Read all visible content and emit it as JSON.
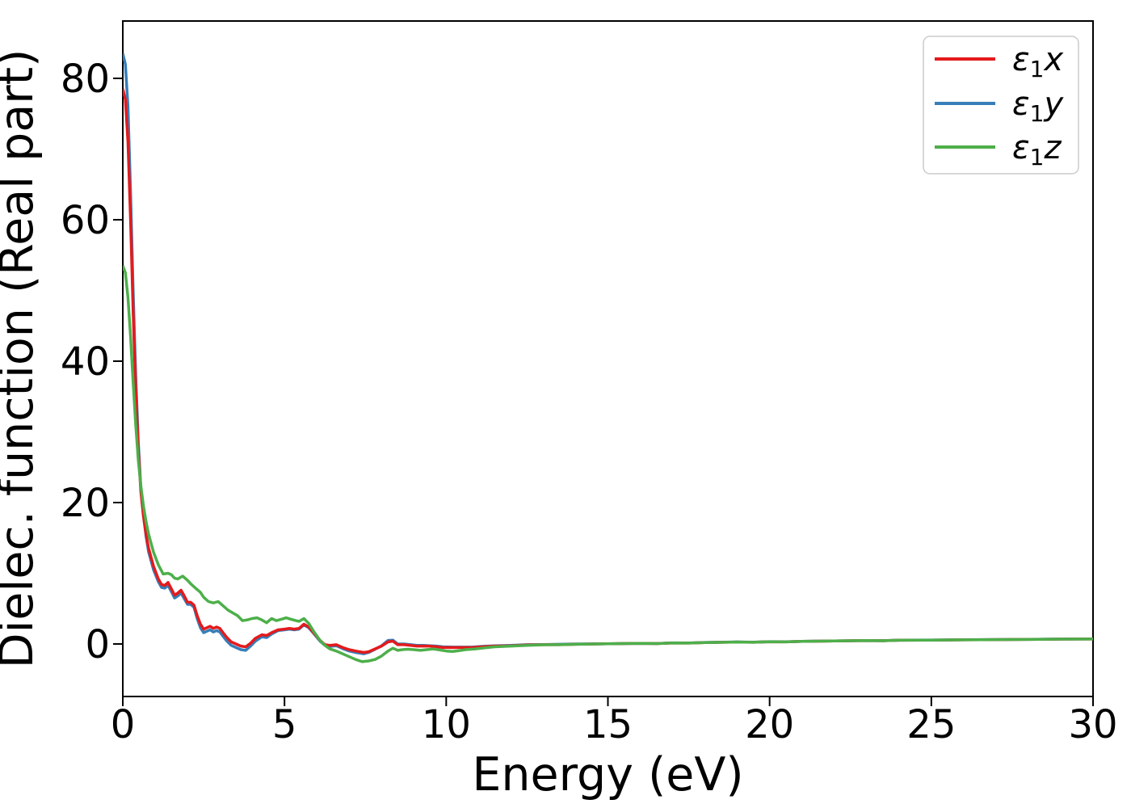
{
  "figure": {
    "background": "#ffffff"
  },
  "chart_data": {
    "type": "line",
    "title": "",
    "xlabel": "Energy (eV)",
    "ylabel": "Dielec. function (Real part)",
    "xlim": [
      0,
      30
    ],
    "ylim": [
      -7.43,
      88.11
    ],
    "xticks": [
      0,
      5,
      10,
      15,
      20,
      25,
      30
    ],
    "yticks": [
      0,
      20,
      40,
      60,
      80
    ],
    "grid": false,
    "legend": {
      "position": "upper right",
      "entries": [
        {
          "symbol": "ε",
          "subscript": "1",
          "component": "x",
          "display": "ε1x",
          "color": "#e41a1c"
        },
        {
          "symbol": "ε",
          "subscript": "1",
          "component": "y",
          "display": "ε1y",
          "color": "#377eb8"
        },
        {
          "symbol": "ε",
          "subscript": "1",
          "component": "z",
          "display": "ε1z",
          "color": "#4daf4a"
        }
      ]
    },
    "series": [
      {
        "name": "eps1y",
        "label": "ε1y",
        "color": "#377eb8",
        "points": [
          [
            0,
            83.5
          ],
          [
            0.08,
            82
          ],
          [
            0.16,
            76
          ],
          [
            0.24,
            64
          ],
          [
            0.32,
            50
          ],
          [
            0.4,
            38
          ],
          [
            0.48,
            28.5
          ],
          [
            0.56,
            22
          ],
          [
            0.64,
            18.3
          ],
          [
            0.72,
            15.2
          ],
          [
            0.8,
            13.0
          ],
          [
            0.95,
            10.5
          ],
          [
            1.1,
            8.8
          ],
          [
            1.2,
            8.0
          ],
          [
            1.3,
            7.9
          ],
          [
            1.4,
            8.3
          ],
          [
            1.5,
            7.4
          ],
          [
            1.6,
            6.5
          ],
          [
            1.7,
            6.8
          ],
          [
            1.8,
            7.2
          ],
          [
            1.9,
            6.4
          ],
          [
            2.0,
            5.6
          ],
          [
            2.1,
            5.6
          ],
          [
            2.2,
            5.2
          ],
          [
            2.3,
            3.6
          ],
          [
            2.4,
            2.3
          ],
          [
            2.5,
            1.6
          ],
          [
            2.6,
            1.8
          ],
          [
            2.7,
            2.0
          ],
          [
            2.8,
            1.7
          ],
          [
            2.9,
            1.9
          ],
          [
            3.0,
            1.7
          ],
          [
            3.1,
            1.1
          ],
          [
            3.2,
            0.5
          ],
          [
            3.35,
            -0.2
          ],
          [
            3.5,
            -0.5
          ],
          [
            3.65,
            -0.8
          ],
          [
            3.8,
            -0.9
          ],
          [
            3.95,
            -0.3
          ],
          [
            4.1,
            0.4
          ],
          [
            4.3,
            1.0
          ],
          [
            4.45,
            0.9
          ],
          [
            4.6,
            1.4
          ],
          [
            4.8,
            1.9
          ],
          [
            5.0,
            2.0
          ],
          [
            5.15,
            2.1
          ],
          [
            5.3,
            2.0
          ],
          [
            5.45,
            2.1
          ],
          [
            5.6,
            2.7
          ],
          [
            5.75,
            2.3
          ],
          [
            5.9,
            1.5
          ],
          [
            6.1,
            0.4
          ],
          [
            6.25,
            -0.2
          ],
          [
            6.4,
            -0.35
          ],
          [
            6.6,
            -0.25
          ],
          [
            6.8,
            -0.65
          ],
          [
            7.0,
            -1.0
          ],
          [
            7.2,
            -1.2
          ],
          [
            7.45,
            -1.4
          ],
          [
            7.6,
            -1.2
          ],
          [
            7.8,
            -0.75
          ],
          [
            8.0,
            -0.25
          ],
          [
            8.2,
            0.5
          ],
          [
            8.35,
            0.55
          ],
          [
            8.5,
            0.0
          ],
          [
            8.7,
            0.0
          ],
          [
            8.9,
            -0.1
          ],
          [
            9.1,
            -0.2
          ],
          [
            9.3,
            -0.2
          ],
          [
            9.5,
            -0.25
          ],
          [
            9.7,
            -0.3
          ],
          [
            9.9,
            -0.4
          ],
          [
            10.2,
            -0.45
          ],
          [
            10.5,
            -0.45
          ],
          [
            10.8,
            -0.45
          ],
          [
            11.1,
            -0.35
          ],
          [
            11.5,
            -0.25
          ],
          [
            12.0,
            -0.2
          ],
          [
            12.5,
            -0.1
          ],
          [
            13.0,
            -0.08
          ],
          [
            13.5,
            -0.05
          ],
          [
            14.0,
            0.0
          ],
          [
            15,
            0.03
          ],
          [
            16,
            0.09
          ],
          [
            16.5,
            0.06
          ],
          [
            17,
            0.16
          ],
          [
            17.5,
            0.13
          ],
          [
            18,
            0.21
          ],
          [
            19,
            0.28
          ],
          [
            19.5,
            0.25
          ],
          [
            20,
            0.33
          ],
          [
            20.5,
            0.31
          ],
          [
            21,
            0.38
          ],
          [
            22,
            0.43
          ],
          [
            23,
            0.49
          ],
          [
            23.5,
            0.47
          ],
          [
            24,
            0.53
          ],
          [
            25,
            0.56
          ],
          [
            26,
            0.59
          ],
          [
            27,
            0.63
          ],
          [
            28,
            0.65
          ],
          [
            29,
            0.69
          ],
          [
            30,
            0.71
          ]
        ]
      },
      {
        "name": "eps1x",
        "label": "ε1x",
        "color": "#e41a1c",
        "points": [
          [
            0,
            78.5
          ],
          [
            0.08,
            77
          ],
          [
            0.16,
            71
          ],
          [
            0.24,
            60
          ],
          [
            0.32,
            47
          ],
          [
            0.4,
            36
          ],
          [
            0.48,
            27.5
          ],
          [
            0.56,
            21.5
          ],
          [
            0.64,
            18
          ],
          [
            0.72,
            15.5
          ],
          [
            0.8,
            13.5
          ],
          [
            0.95,
            11
          ],
          [
            1.1,
            9.2
          ],
          [
            1.2,
            8.4
          ],
          [
            1.3,
            8.3
          ],
          [
            1.4,
            8.7
          ],
          [
            1.5,
            7.8
          ],
          [
            1.6,
            6.9
          ],
          [
            1.7,
            7.2
          ],
          [
            1.8,
            7.6
          ],
          [
            1.9,
            6.8
          ],
          [
            2.0,
            5.9
          ],
          [
            2.1,
            5.9
          ],
          [
            2.2,
            5.5
          ],
          [
            2.3,
            4.0
          ],
          [
            2.4,
            2.8
          ],
          [
            2.5,
            2.1
          ],
          [
            2.6,
            2.3
          ],
          [
            2.7,
            2.5
          ],
          [
            2.8,
            2.2
          ],
          [
            2.9,
            2.4
          ],
          [
            3.0,
            2.2
          ],
          [
            3.1,
            1.6
          ],
          [
            3.2,
            1.0
          ],
          [
            3.35,
            0.3
          ],
          [
            3.5,
            0.0
          ],
          [
            3.65,
            -0.3
          ],
          [
            3.8,
            -0.4
          ],
          [
            3.95,
            0.1
          ],
          [
            4.1,
            0.8
          ],
          [
            4.3,
            1.3
          ],
          [
            4.45,
            1.2
          ],
          [
            4.6,
            1.6
          ],
          [
            4.8,
            2.0
          ],
          [
            5.0,
            2.1
          ],
          [
            5.15,
            2.2
          ],
          [
            5.3,
            2.1
          ],
          [
            5.45,
            2.2
          ],
          [
            5.6,
            2.8
          ],
          [
            5.75,
            2.4
          ],
          [
            5.9,
            1.6
          ],
          [
            6.1,
            0.5
          ],
          [
            6.25,
            -0.1
          ],
          [
            6.4,
            -0.2
          ],
          [
            6.6,
            -0.1
          ],
          [
            6.8,
            -0.5
          ],
          [
            7.0,
            -0.8
          ],
          [
            7.2,
            -1.0
          ],
          [
            7.45,
            -1.2
          ],
          [
            7.6,
            -1.1
          ],
          [
            7.8,
            -0.7
          ],
          [
            8.0,
            -0.3
          ],
          [
            8.2,
            0.3
          ],
          [
            8.35,
            0.4
          ],
          [
            8.5,
            -0.1
          ],
          [
            8.7,
            -0.1
          ],
          [
            8.9,
            -0.2
          ],
          [
            9.1,
            -0.3
          ],
          [
            9.3,
            -0.3
          ],
          [
            9.5,
            -0.3
          ],
          [
            9.7,
            -0.4
          ],
          [
            9.9,
            -0.5
          ],
          [
            10.2,
            -0.5
          ],
          [
            10.5,
            -0.5
          ],
          [
            10.8,
            -0.5
          ],
          [
            11.1,
            -0.4
          ],
          [
            11.5,
            -0.3
          ],
          [
            12.0,
            -0.25
          ],
          [
            12.5,
            -0.15
          ],
          [
            13.0,
            -0.1
          ],
          [
            13.5,
            -0.1
          ],
          [
            14.0,
            -0.05
          ],
          [
            15,
            0.02
          ],
          [
            16,
            0.08
          ],
          [
            16.5,
            0.05
          ],
          [
            17,
            0.15
          ],
          [
            17.5,
            0.12
          ],
          [
            18,
            0.2
          ],
          [
            19,
            0.27
          ],
          [
            19.5,
            0.24
          ],
          [
            20,
            0.32
          ],
          [
            20.5,
            0.3
          ],
          [
            21,
            0.37
          ],
          [
            22,
            0.42
          ],
          [
            23,
            0.48
          ],
          [
            23.5,
            0.46
          ],
          [
            24,
            0.52
          ],
          [
            25,
            0.55
          ],
          [
            26,
            0.58
          ],
          [
            27,
            0.62
          ],
          [
            28,
            0.64
          ],
          [
            29,
            0.68
          ],
          [
            30,
            0.7
          ]
        ]
      },
      {
        "name": "eps1z",
        "label": "ε1z",
        "color": "#4daf4a",
        "points": [
          [
            0,
            53.5
          ],
          [
            0.08,
            52.5
          ],
          [
            0.16,
            49
          ],
          [
            0.24,
            43.5
          ],
          [
            0.32,
            37
          ],
          [
            0.4,
            31
          ],
          [
            0.48,
            26
          ],
          [
            0.56,
            22.3
          ],
          [
            0.64,
            19.5
          ],
          [
            0.72,
            17.3
          ],
          [
            0.8,
            15.5
          ],
          [
            0.95,
            13.0
          ],
          [
            1.1,
            11.2
          ],
          [
            1.25,
            9.9
          ],
          [
            1.4,
            10.0
          ],
          [
            1.5,
            9.8
          ],
          [
            1.6,
            9.3
          ],
          [
            1.7,
            9.2
          ],
          [
            1.85,
            9.6
          ],
          [
            2.0,
            9.0
          ],
          [
            2.1,
            8.5
          ],
          [
            2.25,
            7.9
          ],
          [
            2.4,
            7.3
          ],
          [
            2.5,
            6.6
          ],
          [
            2.65,
            6.0
          ],
          [
            2.8,
            5.8
          ],
          [
            2.95,
            6.0
          ],
          [
            3.1,
            5.4
          ],
          [
            3.25,
            4.8
          ],
          [
            3.4,
            4.4
          ],
          [
            3.55,
            4.0
          ],
          [
            3.7,
            3.3
          ],
          [
            3.85,
            3.4
          ],
          [
            4.0,
            3.6
          ],
          [
            4.15,
            3.7
          ],
          [
            4.3,
            3.4
          ],
          [
            4.45,
            3.0
          ],
          [
            4.6,
            3.6
          ],
          [
            4.75,
            3.3
          ],
          [
            4.9,
            3.5
          ],
          [
            5.05,
            3.7
          ],
          [
            5.2,
            3.5
          ],
          [
            5.35,
            3.3
          ],
          [
            5.45,
            3.2
          ],
          [
            5.6,
            3.6
          ],
          [
            5.75,
            2.9
          ],
          [
            5.9,
            1.8
          ],
          [
            6.1,
            0.5
          ],
          [
            6.25,
            -0.2
          ],
          [
            6.4,
            -0.7
          ],
          [
            6.6,
            -1.0
          ],
          [
            6.8,
            -1.4
          ],
          [
            7.0,
            -1.8
          ],
          [
            7.2,
            -2.2
          ],
          [
            7.4,
            -2.5
          ],
          [
            7.6,
            -2.4
          ],
          [
            7.8,
            -2.2
          ],
          [
            8.0,
            -1.7
          ],
          [
            8.2,
            -1.0
          ],
          [
            8.35,
            -0.6
          ],
          [
            8.5,
            -0.9
          ],
          [
            8.65,
            -0.8
          ],
          [
            8.8,
            -0.75
          ],
          [
            9.0,
            -0.8
          ],
          [
            9.2,
            -0.9
          ],
          [
            9.4,
            -0.8
          ],
          [
            9.6,
            -0.7
          ],
          [
            9.8,
            -0.85
          ],
          [
            10.0,
            -1.0
          ],
          [
            10.2,
            -1.05
          ],
          [
            10.4,
            -0.95
          ],
          [
            10.6,
            -0.8
          ],
          [
            10.9,
            -0.7
          ],
          [
            11.2,
            -0.55
          ],
          [
            11.5,
            -0.4
          ],
          [
            12.0,
            -0.3
          ],
          [
            12.5,
            -0.2
          ],
          [
            13.0,
            -0.12
          ],
          [
            13.5,
            -0.1
          ],
          [
            14.0,
            -0.05
          ],
          [
            15,
            0.02
          ],
          [
            16,
            0.08
          ],
          [
            16.5,
            0.05
          ],
          [
            17,
            0.15
          ],
          [
            17.5,
            0.12
          ],
          [
            18,
            0.2
          ],
          [
            19,
            0.27
          ],
          [
            19.5,
            0.24
          ],
          [
            20,
            0.32
          ],
          [
            20.5,
            0.3
          ],
          [
            21,
            0.37
          ],
          [
            22,
            0.42
          ],
          [
            23,
            0.48
          ],
          [
            23.5,
            0.46
          ],
          [
            24,
            0.52
          ],
          [
            25,
            0.55
          ],
          [
            26,
            0.58
          ],
          [
            27,
            0.62
          ],
          [
            28,
            0.64
          ],
          [
            29,
            0.68
          ],
          [
            30,
            0.7
          ]
        ]
      }
    ]
  }
}
